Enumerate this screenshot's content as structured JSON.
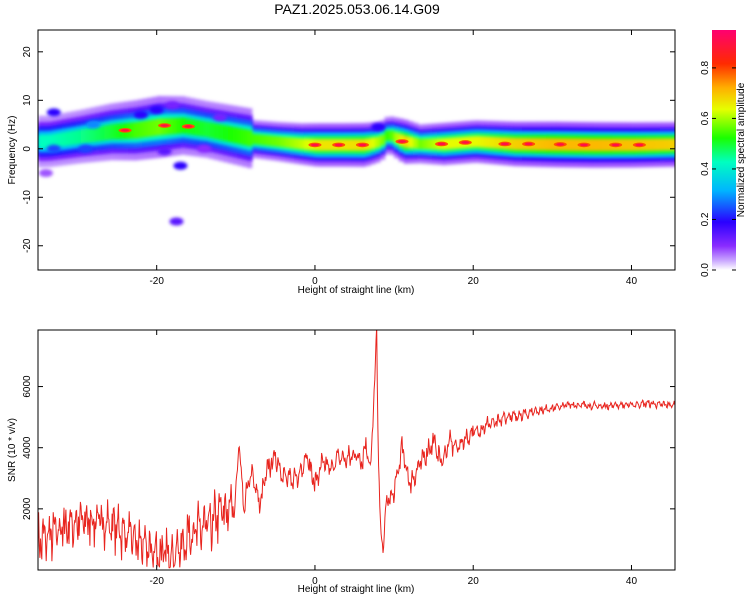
{
  "title": "PAZ1.2025.053.06.14.G09",
  "colors": {
    "snr_line": "#e8251f",
    "axis": "#000000"
  },
  "chart_data": [
    {
      "type": "heatmap",
      "xlabel": "Height of straight line (km)",
      "ylabel": "Frequency (Hz)",
      "xlim": [
        -35,
        45.5
      ],
      "ylim": [
        -25,
        24.5
      ],
      "xticks": [
        -20,
        0,
        20,
        40
      ],
      "yticks": [
        -20,
        -10,
        0,
        10,
        20
      ],
      "xtick_labels": [
        "-20",
        "0",
        "20",
        "40"
      ],
      "ytick_labels": [
        "-20",
        "-10",
        "0",
        "10",
        "20"
      ],
      "colorbar": {
        "label": "Normalized spectral amplitude",
        "range": [
          0,
          0.95
        ],
        "ticks": [
          0,
          0.2,
          0.4,
          0.6,
          0.8
        ],
        "tick_labels": [
          "0.0",
          "0.2",
          "0.4",
          "0.6",
          "0.8"
        ]
      },
      "ridge": {
        "height_km": [
          -34,
          -30,
          -26,
          -23,
          -20,
          -17,
          -14,
          -11,
          -8,
          -5,
          -2,
          0,
          3,
          6,
          8,
          9,
          11,
          13,
          16,
          20,
          25,
          30,
          35,
          40,
          45
        ],
        "frequency_hz": [
          1.5,
          2.5,
          3.5,
          3.8,
          4.5,
          4.8,
          4.0,
          3.0,
          2.0,
          1.5,
          1.0,
          0.8,
          0.8,
          0.8,
          1.5,
          3.0,
          1.5,
          1.0,
          1.0,
          1.5,
          1.0,
          0.9,
          0.8,
          0.8,
          0.9
        ],
        "amplitude": [
          0.3,
          0.35,
          0.45,
          0.55,
          0.6,
          0.5,
          0.45,
          0.5,
          0.55,
          0.6,
          0.7,
          0.8,
          0.8,
          0.82,
          0.65,
          0.5,
          0.85,
          0.6,
          0.75,
          0.75,
          0.85,
          0.9,
          0.9,
          0.88,
          0.85
        ]
      },
      "peaks": [
        {
          "height_km": 0,
          "frequency_hz": 0.8
        },
        {
          "height_km": 3,
          "frequency_hz": 0.8
        },
        {
          "height_km": 6,
          "frequency_hz": 0.8
        },
        {
          "height_km": 11,
          "frequency_hz": 1.5
        },
        {
          "height_km": 16,
          "frequency_hz": 1.0
        },
        {
          "height_km": 19,
          "frequency_hz": 1.3
        },
        {
          "height_km": 24,
          "frequency_hz": 1.0
        },
        {
          "height_km": 27,
          "frequency_hz": 1.0
        },
        {
          "height_km": 31,
          "frequency_hz": 0.9
        },
        {
          "height_km": 34,
          "frequency_hz": 0.8
        },
        {
          "height_km": 38,
          "frequency_hz": 0.8
        },
        {
          "height_km": 41,
          "frequency_hz": 0.8
        },
        {
          "height_km": -24,
          "frequency_hz": 3.8
        },
        {
          "height_km": -19,
          "frequency_hz": 4.8
        },
        {
          "height_km": -16,
          "frequency_hz": 4.6
        }
      ],
      "blobs": [
        {
          "height_km": -33,
          "frequency_hz": 7.5,
          "amp": 0.2
        },
        {
          "height_km": -33,
          "frequency_hz": 0.0,
          "amp": 0.25
        },
        {
          "height_km": -28,
          "frequency_hz": 5.0,
          "amp": 0.3
        },
        {
          "height_km": -29,
          "frequency_hz": 0.0,
          "amp": 0.25
        },
        {
          "height_km": -22,
          "frequency_hz": 7.0,
          "amp": 0.2
        },
        {
          "height_km": -20,
          "frequency_hz": 8.0,
          "amp": 0.2
        },
        {
          "height_km": -18,
          "frequency_hz": 9.0,
          "amp": 0.12
        },
        {
          "height_km": -19,
          "frequency_hz": -0.5,
          "amp": 0.15
        },
        {
          "height_km": -17,
          "frequency_hz": -3.5,
          "amp": 0.2
        },
        {
          "height_km": -14,
          "frequency_hz": 0.0,
          "amp": 0.1
        },
        {
          "height_km": -17.5,
          "frequency_hz": -15.0,
          "amp": 0.15
        },
        {
          "height_km": -34,
          "frequency_hz": -5.0,
          "amp": 0.08
        },
        {
          "height_km": 8,
          "frequency_hz": 4.5,
          "amp": 0.2
        },
        {
          "height_km": -12,
          "frequency_hz": 6.5,
          "amp": 0.12
        }
      ]
    },
    {
      "type": "line",
      "xlabel": "Height of straight line (km)",
      "ylabel": "SNR (10 * v/v)",
      "xlim": [
        -35,
        45.5
      ],
      "ylim": [
        0,
        7850
      ],
      "xticks": [
        -20,
        0,
        20,
        40
      ],
      "yticks": [
        2000,
        4000,
        6000
      ],
      "xtick_labels": [
        "-20",
        "0",
        "20",
        "40"
      ],
      "ytick_labels": [
        "2000",
        "4000",
        "6000"
      ],
      "series": [
        {
          "name": "SNR",
          "x": [
            -35,
            -33,
            -31,
            -29,
            -27,
            -25,
            -23,
            -21,
            -19.5,
            -18,
            -17,
            -16,
            -15,
            -14,
            -13,
            -12,
            -11,
            -10,
            -9.6,
            -9,
            -8,
            -7,
            -6,
            -5,
            -4,
            -3,
            -2,
            -1,
            0,
            1,
            2,
            3,
            4,
            5,
            6,
            6.5,
            7,
            7.5,
            7.8,
            8.0,
            8.3,
            8.6,
            9,
            10,
            11,
            12,
            13,
            14,
            15,
            16,
            17,
            18,
            19,
            20,
            21,
            22,
            23,
            24,
            25,
            26,
            28,
            30,
            32,
            34,
            36,
            38,
            40,
            42,
            44,
            45.5
          ],
          "values": [
            900,
            1200,
            1500,
            1600,
            1600,
            1400,
            1000,
            700,
            500,
            500,
            650,
            1200,
            1300,
            1400,
            1500,
            1900,
            1900,
            2400,
            4300,
            2000,
            3300,
            2100,
            3300,
            3700,
            3100,
            2900,
            3200,
            3700,
            2800,
            3500,
            3300,
            3700,
            3600,
            3800,
            3600,
            4200,
            3200,
            5800,
            7850,
            3800,
            1300,
            600,
            2200,
            2500,
            4000,
            2800,
            3300,
            3800,
            4200,
            3500,
            4200,
            4000,
            4300,
            4500,
            4600,
            4800,
            4800,
            5000,
            5000,
            5100,
            5200,
            5300,
            5400,
            5400,
            5350,
            5400,
            5400,
            5450,
            5400,
            5400
          ]
        }
      ],
      "grid": false
    }
  ]
}
